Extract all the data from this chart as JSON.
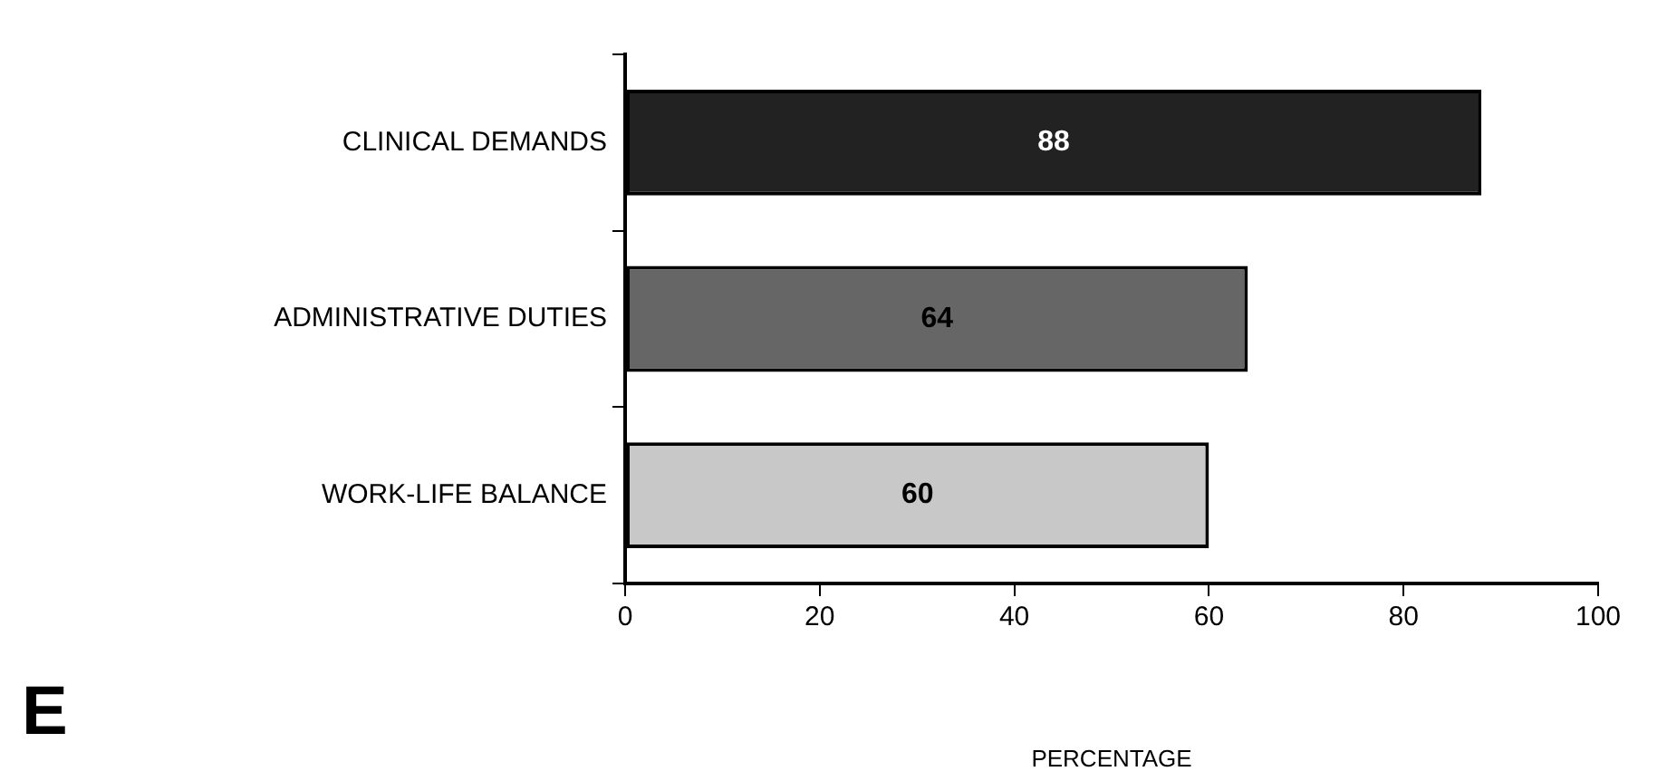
{
  "chart_data": {
    "type": "bar",
    "orientation": "horizontal",
    "xlabel": "PERCENTAGE",
    "categories": [
      "CLINICAL DEMANDS",
      "ADMINISTRATIVE DUTIES",
      "WORK-LIFE BALANCE"
    ],
    "values": [
      88,
      64,
      60
    ],
    "colors": [
      "#222222",
      "#666666",
      "#c8c8c8"
    ],
    "xlim": [
      0,
      100
    ],
    "xticks": [
      0,
      20,
      40,
      60,
      80,
      100
    ],
    "grid": false,
    "legend": false,
    "data_labels": true,
    "annotations": [
      "E"
    ]
  }
}
